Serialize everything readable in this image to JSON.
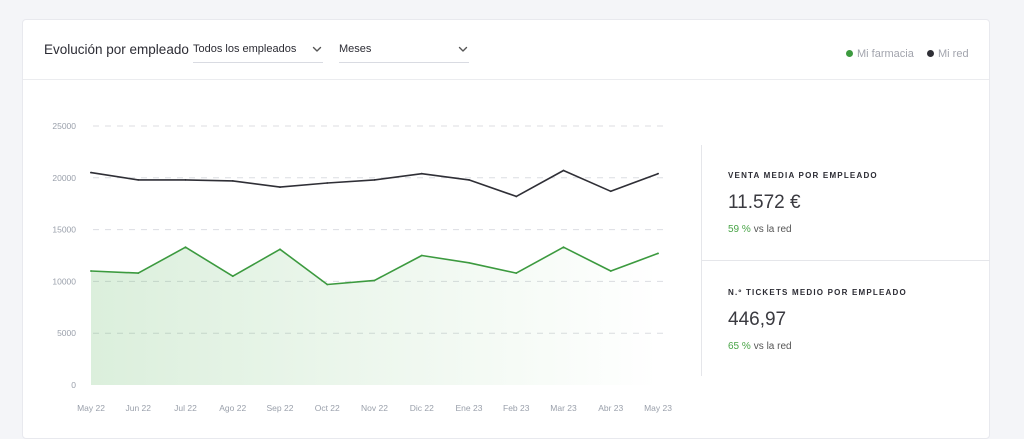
{
  "header": {
    "title": "Evolución por empleado",
    "employee_select": "Todos los empleados",
    "period_select": "Meses"
  },
  "legend": [
    {
      "label": "Mi farmacia",
      "color": "#3c9a3f"
    },
    {
      "label": "Mi red",
      "color": "#2f2f36"
    }
  ],
  "chart_data": {
    "type": "line",
    "categories": [
      "May 22",
      "Jun 22",
      "Jul 22",
      "Ago 22",
      "Sep 22",
      "Oct 22",
      "Nov 22",
      "Dic 22",
      "Ene 23",
      "Feb 23",
      "Mar 23",
      "Abr 23",
      "May 23"
    ],
    "series": [
      {
        "name": "Mi farmacia",
        "color": "#3c9a3f",
        "fill": true,
        "values": [
          11000,
          10800,
          13300,
          10500,
          13100,
          9700,
          10100,
          12500,
          11800,
          10800,
          13300,
          11000,
          12700
        ]
      },
      {
        "name": "Mi red",
        "color": "#2f2f36",
        "fill": false,
        "values": [
          20500,
          19800,
          19800,
          19700,
          19100,
          19500,
          19800,
          20400,
          19800,
          18200,
          20700,
          18700,
          20400
        ]
      }
    ],
    "ylim": [
      0,
      25000
    ],
    "yticks": [
      0,
      5000,
      10000,
      15000,
      20000,
      25000
    ],
    "grid": "dashed horizontal"
  },
  "kpis": [
    {
      "label": "VENTA MEDIA POR EMPLEADO",
      "value": "11.572 €",
      "pct": "59 %",
      "compare": "vs la red"
    },
    {
      "label": "N.º TICKETS MEDIO POR EMPLEADO",
      "value": "446,97",
      "pct": "65 %",
      "compare": "vs la red"
    }
  ]
}
